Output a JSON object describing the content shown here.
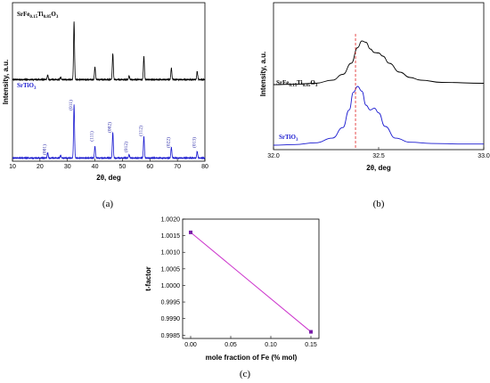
{
  "panels": {
    "a_label": "(a)",
    "b_label": "(b)",
    "c_label": "(c)"
  },
  "colors": {
    "black_series": "#000000",
    "blue_series": "#1a1ad0",
    "red_marker": "#e02020",
    "magenta_series": "#cc33cc",
    "marker_fill": "#7a1fa8"
  },
  "chart_data": [
    {
      "id": "a",
      "type": "line",
      "xlabel": "2θ, deg",
      "ylabel": "Intensity, a.u.",
      "xlim": [
        10,
        80
      ],
      "xticks": [
        10,
        20,
        30,
        40,
        50,
        60,
        70,
        80
      ],
      "series": [
        {
          "name": "SrFe0.15Ti0.85O3",
          "label_base": "SrFe",
          "label_sub1": "0.15",
          "label_mid": "Ti",
          "label_sub2": "0.85",
          "label_tail": "O",
          "label_sub3": "3",
          "peaks": [
            [
              22.8,
              0.08
            ],
            [
              27.5,
              0.04
            ],
            [
              32.4,
              1.0
            ],
            [
              40.0,
              0.22
            ],
            [
              46.5,
              0.45
            ],
            [
              52.4,
              0.06
            ],
            [
              57.8,
              0.4
            ],
            [
              67.8,
              0.2
            ],
            [
              77.2,
              0.14
            ]
          ]
        },
        {
          "name": "SrTiO3",
          "label_base": "SrTiO",
          "label_sub": "3",
          "peaks": [
            [
              22.8,
              0.1
            ],
            [
              27.5,
              0.05
            ],
            [
              32.4,
              1.0
            ],
            [
              40.0,
              0.22
            ],
            [
              46.5,
              0.48
            ],
            [
              52.4,
              0.06
            ],
            [
              57.8,
              0.4
            ],
            [
              67.8,
              0.2
            ],
            [
              77.2,
              0.12
            ]
          ]
        }
      ],
      "annotations": [
        {
          "x": 22.8,
          "text": "(001)"
        },
        {
          "x": 32.4,
          "text": "(011)"
        },
        {
          "x": 40.0,
          "text": "(111)"
        },
        {
          "x": 46.5,
          "text": "(002)"
        },
        {
          "x": 52.4,
          "text": "(012)"
        },
        {
          "x": 57.8,
          "text": "(112)"
        },
        {
          "x": 67.8,
          "text": "(022)"
        },
        {
          "x": 77.2,
          "text": "(013)"
        }
      ]
    },
    {
      "id": "b",
      "type": "line",
      "xlabel": "2θ, deg",
      "ylabel": "Intensity, a.u.",
      "xlim": [
        32.0,
        33.0
      ],
      "xticks": [
        32.0,
        32.5,
        33.0
      ],
      "xtick_labels": [
        "32.0",
        "32.5",
        "33.0"
      ],
      "reference_line_x": 32.39,
      "series": [
        {
          "name": "SrFe0.15Ti0.85O3",
          "label_base": "SrFe",
          "label_sub1": "0.15",
          "label_mid": "Ti",
          "label_sub2": "0.85",
          "label_tail": "O",
          "label_sub3": "3",
          "x": [
            32.0,
            32.1,
            32.2,
            32.28,
            32.33,
            32.37,
            32.4,
            32.42,
            32.44,
            32.46,
            32.48,
            32.5,
            32.52,
            32.55,
            32.6,
            32.65,
            32.7,
            32.8,
            33.0
          ],
          "y": [
            0.02,
            0.03,
            0.05,
            0.12,
            0.25,
            0.5,
            0.85,
            1.0,
            0.97,
            0.82,
            0.74,
            0.73,
            0.66,
            0.5,
            0.3,
            0.18,
            0.12,
            0.07,
            0.05
          ]
        },
        {
          "name": "SrTiO3",
          "label_base": "SrTiO",
          "label_sub": "3",
          "x": [
            32.0,
            32.1,
            32.2,
            32.28,
            32.33,
            32.36,
            32.38,
            32.4,
            32.42,
            32.44,
            32.46,
            32.48,
            32.5,
            32.53,
            32.58,
            32.65,
            32.75,
            32.9,
            33.0
          ],
          "y": [
            0.0,
            0.01,
            0.04,
            0.12,
            0.3,
            0.6,
            0.9,
            1.0,
            0.92,
            0.68,
            0.6,
            0.63,
            0.55,
            0.32,
            0.12,
            0.05,
            0.03,
            0.02,
            0.02
          ]
        }
      ]
    },
    {
      "id": "c",
      "type": "line",
      "xlabel": "mole fraction of Fe (% mol)",
      "ylabel": "t-factor",
      "xlim": [
        -0.01,
        0.16
      ],
      "ylim": [
        0.9984,
        1.002
      ],
      "xticks": [
        0.0,
        0.05,
        0.1,
        0.15
      ],
      "xtick_labels": [
        "0.00",
        "0.05",
        "0.10",
        "0.15"
      ],
      "yticks": [
        0.9985,
        0.999,
        0.9995,
        1.0,
        1.0005,
        1.001,
        1.0015,
        1.002
      ],
      "ytick_labels": [
        "0.9985",
        "0.9990",
        "0.9995",
        "1.0000",
        "1.0005",
        "1.0010",
        "1.0015",
        "1.0020"
      ],
      "x": [
        0.0,
        0.15
      ],
      "y": [
        1.0016,
        0.9986
      ]
    }
  ]
}
